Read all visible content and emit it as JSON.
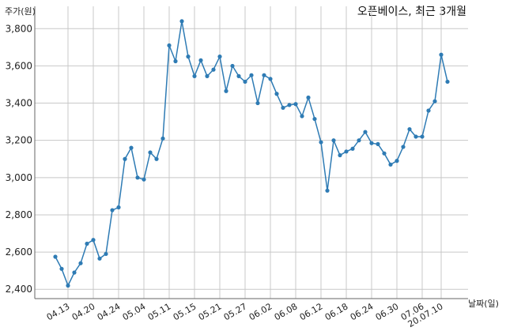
{
  "chart_data": {
    "type": "line",
    "title": "오픈베이스, 최근 3개월",
    "ylabel": "주가(원)",
    "xlabel": "날짜(일)",
    "ylim": [
      2350,
      3920
    ],
    "yticks": [
      2400,
      2600,
      2800,
      3000,
      3200,
      3400,
      3600,
      3800
    ],
    "ytick_labels": [
      "2,400",
      "2,600",
      "2,800",
      "3,000",
      "3,200",
      "3,400",
      "3,600",
      "3,800"
    ],
    "xticks": [
      {
        "index": 2,
        "label": "04.13"
      },
      {
        "index": 6,
        "label": "04.20"
      },
      {
        "index": 10,
        "label": "04.24"
      },
      {
        "index": 14,
        "label": "05.04"
      },
      {
        "index": 18,
        "label": "05.11"
      },
      {
        "index": 22,
        "label": "05.15"
      },
      {
        "index": 26,
        "label": "05.21"
      },
      {
        "index": 30,
        "label": "05.27"
      },
      {
        "index": 34,
        "label": "06.02"
      },
      {
        "index": 38,
        "label": "06.08"
      },
      {
        "index": 42,
        "label": "06.12"
      },
      {
        "index": 46,
        "label": "06.18"
      },
      {
        "index": 50,
        "label": "06.24"
      },
      {
        "index": 54,
        "label": "06.30"
      },
      {
        "index": 58,
        "label": "07.06"
      },
      {
        "index": 61,
        "label": "20.07.10"
      }
    ],
    "grid": true,
    "series": [
      {
        "color": "#2e7bb4",
        "values": [
          2575,
          2510,
          2420,
          2490,
          2540,
          2645,
          2665,
          2565,
          2590,
          2825,
          2840,
          3100,
          3160,
          3000,
          2990,
          3135,
          3100,
          3210,
          3710,
          3625,
          3840,
          3650,
          3545,
          3630,
          3545,
          3580,
          3650,
          3465,
          3600,
          3545,
          3515,
          3550,
          3400,
          3550,
          3530,
          3450,
          3375,
          3390,
          3395,
          3330,
          3430,
          3315,
          3190,
          2930,
          3200,
          3120,
          3140,
          3155,
          3200,
          3245,
          3185,
          3180,
          3130,
          3070,
          3090,
          3165,
          3260,
          3220,
          3220,
          3360,
          3410,
          3660,
          3515
        ]
      }
    ]
  }
}
